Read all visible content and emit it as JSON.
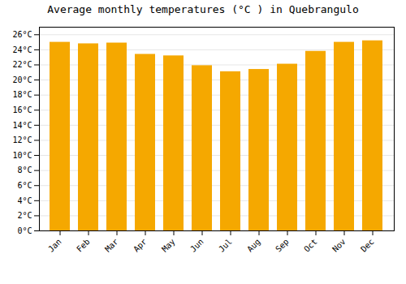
{
  "chart_data": {
    "type": "bar",
    "title": "Average monthly temperatures (°C ) in Quebrangulo",
    "categories": [
      "Jan",
      "Feb",
      "Mar",
      "Apr",
      "May",
      "Jun",
      "Jul",
      "Aug",
      "Sep",
      "Oct",
      "Nov",
      "Dec"
    ],
    "values": [
      25.0,
      24.8,
      24.9,
      23.4,
      23.2,
      21.9,
      21.1,
      21.4,
      22.1,
      23.8,
      25.0,
      25.2
    ],
    "color": "#F5A800",
    "ylim": [
      0,
      27
    ],
    "yticks": [
      {
        "value": 0,
        "label": "0°C"
      },
      {
        "value": 2,
        "label": "2°C"
      },
      {
        "value": 4,
        "label": "4°C"
      },
      {
        "value": 6,
        "label": "6°C"
      },
      {
        "value": 8,
        "label": "8°C"
      },
      {
        "value": 10,
        "label": "10°C"
      },
      {
        "value": 12,
        "label": "12°C"
      },
      {
        "value": 14,
        "label": "14°C"
      },
      {
        "value": 16,
        "label": "16°C"
      },
      {
        "value": 18,
        "label": "18°C"
      },
      {
        "value": 20,
        "label": "20°C"
      },
      {
        "value": 22,
        "label": "22°C"
      },
      {
        "value": 24,
        "label": "24°C"
      },
      {
        "value": 26,
        "label": "26°C"
      }
    ],
    "grid": true
  }
}
